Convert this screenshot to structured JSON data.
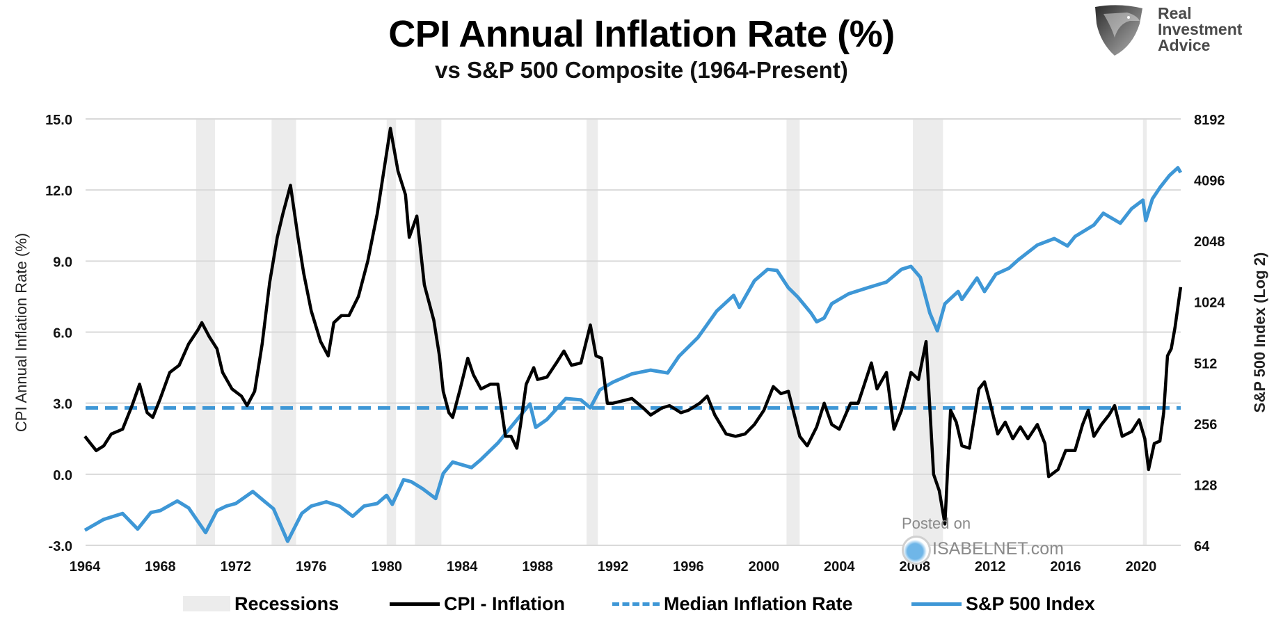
{
  "header": {
    "title": "CPI Annual Inflation Rate (%)",
    "subtitle": "vs S&P 500 Composite (1964-Present)",
    "logo_text": [
      "Real",
      "Investment",
      "Advice"
    ],
    "logo_icon": "eagle-shield-icon"
  },
  "watermark": {
    "line1": "Posted on",
    "line2": "ISABELNET.com",
    "icon": "globe-icon"
  },
  "colors": {
    "cpi": "#000000",
    "median": "#3e97d6",
    "sp500": "#3e97d6",
    "recession": "#ececec",
    "grid": "#d9d9d9"
  },
  "chart_data": {
    "type": "line",
    "title": "CPI Annual Inflation Rate (%)",
    "subtitle": "vs S&P 500 Composite (1964-Present)",
    "xlabel": "",
    "ylabel": "CPI Annual Inflation Rate (%)",
    "y2label": "S&P 500 Index (Log 2)",
    "xlim": [
      1964,
      2022.1
    ],
    "ylim": [
      -3.0,
      15.0
    ],
    "y2lim": [
      64,
      8192
    ],
    "y2scale": "log2",
    "grid": true,
    "legend_position": "bottom",
    "x_ticks": [
      "1964",
      "1968",
      "1972",
      "1976",
      "1980",
      "1984",
      "1988",
      "1992",
      "1996",
      "2000",
      "2004",
      "2008",
      "2012",
      "2016",
      "2020"
    ],
    "y_ticks": [
      "15.0",
      "12.0",
      "9.0",
      "6.0",
      "3.0",
      "0.0",
      "-3.0"
    ],
    "y2_ticks": [
      "8192",
      "4096",
      "2048",
      "1024",
      "512",
      "256",
      "128",
      "64"
    ],
    "legend": [
      "Recessions",
      "CPI - Inflation",
      "Median Inflation Rate",
      "S&P 500 Index"
    ],
    "recessions": [
      [
        1969.9,
        1970.9
      ],
      [
        1973.9,
        1975.2
      ],
      [
        1980.0,
        1980.5
      ],
      [
        1981.5,
        1982.9
      ],
      [
        1990.6,
        1991.2
      ],
      [
        2001.2,
        2001.9
      ],
      [
        2007.9,
        2009.5
      ],
      [
        2020.1,
        2020.3
      ]
    ],
    "median_inflation": 2.8,
    "series": [
      {
        "name": "CPI - Inflation",
        "axis": "left",
        "x": [
          1964.0,
          1964.3,
          1964.6,
          1965.0,
          1965.4,
          1966.0,
          1966.5,
          1966.9,
          1967.3,
          1967.6,
          1968.0,
          1968.5,
          1969.0,
          1969.5,
          1970.0,
          1970.2,
          1970.6,
          1971.0,
          1971.3,
          1971.8,
          1972.3,
          1972.6,
          1973.0,
          1973.4,
          1973.8,
          1974.2,
          1974.5,
          1974.9,
          1975.3,
          1975.6,
          1976.0,
          1976.5,
          1976.9,
          1977.2,
          1977.6,
          1978.0,
          1978.5,
          1979.0,
          1979.5,
          1980.2,
          1980.6,
          1981.0,
          1981.2,
          1981.6,
          1982.0,
          1982.5,
          1982.8,
          1983.0,
          1983.3,
          1983.5,
          1983.9,
          1984.3,
          1984.6,
          1985.0,
          1985.5,
          1985.9,
          1986.3,
          1986.6,
          1986.9,
          1987.1,
          1987.4,
          1987.8,
          1988.0,
          1988.5,
          1989.0,
          1989.4,
          1989.8,
          1990.3,
          1990.8,
          1991.1,
          1991.4,
          1991.7,
          1992.0,
          1992.5,
          1993.0,
          1993.6,
          1994.0,
          1994.6,
          1995.0,
          1995.6,
          1996.0,
          1996.6,
          1997.0,
          1997.4,
          1998.0,
          1998.5,
          1999.0,
          1999.5,
          2000.0,
          2000.5,
          2000.9,
          2001.3,
          2001.9,
          2002.3,
          2002.8,
          2003.2,
          2003.6,
          2004.0,
          2004.6,
          2005.0,
          2005.7,
          2006.0,
          2006.5,
          2006.9,
          2007.3,
          2007.8,
          2008.2,
          2008.6,
          2009.0,
          2009.3,
          2009.6,
          2009.9,
          2010.2,
          2010.5,
          2010.9,
          2011.4,
          2011.7,
          2012.0,
          2012.4,
          2012.8,
          2013.2,
          2013.6,
          2014.0,
          2014.5,
          2014.9,
          2015.1,
          2015.6,
          2016.0,
          2016.5,
          2016.9,
          2017.2,
          2017.5,
          2017.9,
          2018.3,
          2018.6,
          2019.0,
          2019.5,
          2019.9,
          2020.2,
          2020.4,
          2020.7,
          2021.0,
          2021.2,
          2021.4,
          2021.6,
          2021.8,
          2022.1
        ],
        "values": [
          1.6,
          1.3,
          1.0,
          1.2,
          1.7,
          1.9,
          2.9,
          3.8,
          2.6,
          2.4,
          3.2,
          4.3,
          4.6,
          5.5,
          6.1,
          6.4,
          5.8,
          5.3,
          4.3,
          3.6,
          3.3,
          2.9,
          3.5,
          5.5,
          8.1,
          10.0,
          11.0,
          12.2,
          10.0,
          8.5,
          6.9,
          5.6,
          5.0,
          6.4,
          6.7,
          6.7,
          7.5,
          9.0,
          11.0,
          14.6,
          12.8,
          11.8,
          10.0,
          10.9,
          8.0,
          6.5,
          5.0,
          3.5,
          2.6,
          2.4,
          3.6,
          4.9,
          4.2,
          3.6,
          3.8,
          3.8,
          1.6,
          1.6,
          1.1,
          2.1,
          3.8,
          4.5,
          4.0,
          4.1,
          4.7,
          5.2,
          4.6,
          4.7,
          6.3,
          5.0,
          4.9,
          3.0,
          3.0,
          3.1,
          3.2,
          2.8,
          2.5,
          2.8,
          2.9,
          2.6,
          2.7,
          3.0,
          3.3,
          2.5,
          1.7,
          1.6,
          1.7,
          2.1,
          2.7,
          3.7,
          3.4,
          3.5,
          1.6,
          1.2,
          2.0,
          3.0,
          2.1,
          1.9,
          3.0,
          3.0,
          4.7,
          3.6,
          4.3,
          1.9,
          2.7,
          4.3,
          4.0,
          5.6,
          0.0,
          -0.7,
          -2.1,
          2.7,
          2.2,
          1.2,
          1.1,
          3.6,
          3.9,
          3.0,
          1.7,
          2.2,
          1.5,
          2.0,
          1.5,
          2.1,
          1.3,
          -0.1,
          0.2,
          1.0,
          1.0,
          2.1,
          2.7,
          1.6,
          2.1,
          2.5,
          2.9,
          1.6,
          1.8,
          2.3,
          1.5,
          0.2,
          1.3,
          1.4,
          2.6,
          5.0,
          5.3,
          6.2,
          7.9
        ]
      },
      {
        "name": "S&P 500 Index",
        "axis": "right",
        "x": [
          1964.0,
          1965.0,
          1966.0,
          1966.8,
          1967.5,
          1968.0,
          1968.9,
          1969.5,
          1970.4,
          1971.0,
          1971.5,
          1972.0,
          1972.9,
          1973.5,
          1974.0,
          1974.75,
          1975.5,
          1976.0,
          1976.8,
          1977.5,
          1978.2,
          1978.8,
          1979.5,
          1980.0,
          1980.3,
          1980.9,
          1981.3,
          1981.9,
          1982.6,
          1983.0,
          1983.5,
          1984.5,
          1985.0,
          1985.9,
          1986.5,
          1987.6,
          1987.9,
          1988.5,
          1989.5,
          1990.3,
          1990.8,
          1991.3,
          1992.0,
          1993.0,
          1994.0,
          1994.9,
          1995.5,
          1996.5,
          1997.5,
          1998.4,
          1998.7,
          1999.5,
          2000.2,
          2000.7,
          2001.3,
          2001.8,
          2002.5,
          2002.8,
          2003.2,
          2003.6,
          2004.5,
          2005.5,
          2006.5,
          2007.3,
          2007.8,
          2008.3,
          2008.8,
          2009.2,
          2009.6,
          2010.3,
          2010.5,
          2011.3,
          2011.7,
          2012.3,
          2013.0,
          2013.5,
          2014.5,
          2015.4,
          2016.1,
          2016.5,
          2017.5,
          2018.0,
          2018.9,
          2019.5,
          2020.1,
          2020.25,
          2020.6,
          2021.0,
          2021.5,
          2021.95,
          2022.1
        ],
        "values": [
          76,
          86,
          92,
          77,
          93,
          95,
          106,
          98,
          74,
          95,
          100,
          103,
          118,
          106,
          97,
          67,
          92,
          100,
          105,
          100,
          89,
          100,
          103,
          113,
          102,
          135,
          132,
          122,
          109,
          145,
          165,
          155,
          170,
          205,
          240,
          320,
          245,
          268,
          340,
          335,
          306,
          375,
          410,
          450,
          470,
          455,
          550,
          680,
          920,
          1100,
          960,
          1300,
          1480,
          1460,
          1200,
          1080,
          900,
          815,
          850,
          1000,
          1120,
          1200,
          1280,
          1480,
          1530,
          1350,
          900,
          735,
          1000,
          1150,
          1050,
          1340,
          1150,
          1400,
          1500,
          1650,
          1950,
          2100,
          1930,
          2150,
          2450,
          2800,
          2500,
          2950,
          3250,
          2580,
          3300,
          3750,
          4300,
          4700,
          4450
        ]
      }
    ]
  }
}
